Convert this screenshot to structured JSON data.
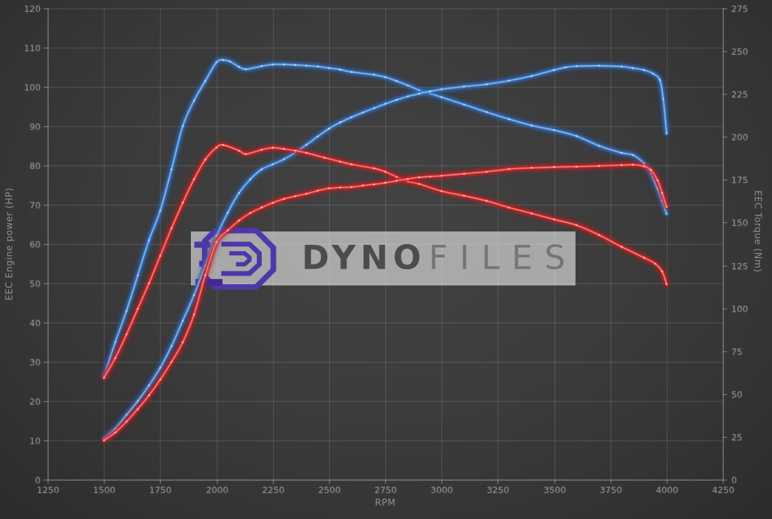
{
  "chart": {
    "ylabel_left": "EEC Engine power (HP)",
    "ylabel_right": "EEC Torque (Nm)",
    "xlabel": "RPM"
  },
  "watermark": {
    "brand_bold": "Dyno",
    "brand_light": "Files",
    "logo_color": "#4e37a8",
    "logo_color_dark": "#3f2b91"
  },
  "colors": {
    "background": "#3c3c3c",
    "grid": "rgba(255,255,255,0.16)",
    "spine": "rgba(255,255,255,0.42)",
    "tick_label": "#a0a0a0",
    "blue_halo": "rgba(30,95,190,0.45)",
    "blue_core": "#3d7ec8",
    "blue_bright": "#a6cdf2",
    "red_halo": "rgba(195,18,18,0.45)",
    "red_core": "#d92b2b",
    "red_bright": "#ff9d9d"
  },
  "chart_data": {
    "type": "line",
    "title": "",
    "xlabel": "RPM",
    "x_axis": {
      "min": 1250,
      "max": 4250,
      "ticks": [
        1250,
        1500,
        1750,
        2000,
        2250,
        2500,
        2750,
        3000,
        3250,
        3500,
        3750,
        4000,
        4250
      ]
    },
    "y_left": {
      "label": "EEC Engine power (HP)",
      "min": 0,
      "max": 120,
      "ticks": [
        0,
        10,
        20,
        30,
        40,
        50,
        60,
        70,
        80,
        90,
        100,
        110,
        120
      ]
    },
    "y_right": {
      "label": "EEC Torque (Nm)",
      "min": 0,
      "max": 275,
      "ticks": [
        0,
        25,
        50,
        75,
        100,
        125,
        150,
        175,
        200,
        225,
        250,
        275
      ]
    },
    "grid": true,
    "legend": "none",
    "series": [
      {
        "name": "torque-run-blue",
        "axis": "right",
        "color": "blue",
        "unit": "Nm",
        "points": [
          [
            1500,
            60.3
          ],
          [
            1550,
            80.2
          ],
          [
            1600,
            98.5
          ],
          [
            1650,
            119.2
          ],
          [
            1700,
            139.8
          ],
          [
            1750,
            157.0
          ],
          [
            1800,
            181.0
          ],
          [
            1850,
            206.3
          ],
          [
            1900,
            221.2
          ],
          [
            1950,
            232.6
          ],
          [
            2000,
            243.6
          ],
          [
            2030,
            244.9
          ],
          [
            2060,
            244.0
          ],
          [
            2100,
            240.9
          ],
          [
            2130,
            239.5
          ],
          [
            2200,
            241.3
          ],
          [
            2250,
            242.3
          ],
          [
            2300,
            242.3
          ],
          [
            2350,
            242.0
          ],
          [
            2400,
            241.6
          ],
          [
            2450,
            241.1
          ],
          [
            2500,
            240.2
          ],
          [
            2550,
            239.3
          ],
          [
            2600,
            237.9
          ],
          [
            2700,
            236.3
          ],
          [
            2750,
            234.9
          ],
          [
            2800,
            232.6
          ],
          [
            2850,
            230.1
          ],
          [
            2900,
            227.3
          ],
          [
            2950,
            225.3
          ],
          [
            3000,
            223.2
          ],
          [
            3100,
            218.9
          ],
          [
            3200,
            214.5
          ],
          [
            3300,
            210.4
          ],
          [
            3400,
            206.7
          ],
          [
            3500,
            204.0
          ],
          [
            3600,
            200.5
          ],
          [
            3700,
            194.8
          ],
          [
            3800,
            190.7
          ],
          [
            3850,
            189.5
          ],
          [
            3900,
            184.5
          ],
          [
            3930,
            178.8
          ],
          [
            3960,
            169.6
          ],
          [
            3980,
            162.7
          ],
          [
            4000,
            155.1
          ]
        ]
      },
      {
        "name": "power-run-blue",
        "axis": "left",
        "color": "blue",
        "unit": "HP",
        "points": [
          [
            1500,
            10.5
          ],
          [
            1550,
            13.0
          ],
          [
            1600,
            16.5
          ],
          [
            1650,
            20.0
          ],
          [
            1700,
            24.0
          ],
          [
            1750,
            28.5
          ],
          [
            1800,
            34.0
          ],
          [
            1850,
            40.5
          ],
          [
            1900,
            47.0
          ],
          [
            1950,
            54.5
          ],
          [
            2000,
            62.0
          ],
          [
            2050,
            68.0
          ],
          [
            2100,
            73.0
          ],
          [
            2150,
            76.5
          ],
          [
            2200,
            79.0
          ],
          [
            2250,
            80.3
          ],
          [
            2300,
            81.6
          ],
          [
            2350,
            83.3
          ],
          [
            2400,
            85.3
          ],
          [
            2450,
            87.4
          ],
          [
            2500,
            89.4
          ],
          [
            2550,
            91.0
          ],
          [
            2600,
            92.3
          ],
          [
            2650,
            93.5
          ],
          [
            2700,
            94.6
          ],
          [
            2750,
            95.7
          ],
          [
            2800,
            96.7
          ],
          [
            2850,
            97.6
          ],
          [
            2900,
            98.3
          ],
          [
            2950,
            98.9
          ],
          [
            3000,
            99.4
          ],
          [
            3100,
            100.1
          ],
          [
            3200,
            100.7
          ],
          [
            3300,
            101.6
          ],
          [
            3400,
            102.8
          ],
          [
            3500,
            104.3
          ],
          [
            3550,
            105.0
          ],
          [
            3600,
            105.3
          ],
          [
            3700,
            105.4
          ],
          [
            3800,
            105.2
          ],
          [
            3850,
            104.8
          ],
          [
            3900,
            104.3
          ],
          [
            3940,
            103.4
          ],
          [
            3970,
            101.8
          ],
          [
            3985,
            97.0
          ],
          [
            4000,
            88.2
          ]
        ]
      },
      {
        "name": "torque-run-red",
        "axis": "right",
        "color": "red",
        "unit": "Nm",
        "points": [
          [
            1500,
            59.4
          ],
          [
            1550,
            71.0
          ],
          [
            1600,
            84.8
          ],
          [
            1650,
            99.7
          ],
          [
            1700,
            114.6
          ],
          [
            1750,
            130.6
          ],
          [
            1800,
            146.7
          ],
          [
            1850,
            161.6
          ],
          [
            1900,
            175.3
          ],
          [
            1950,
            186.8
          ],
          [
            2000,
            193.9
          ],
          [
            2030,
            195.3
          ],
          [
            2100,
            192.0
          ],
          [
            2130,
            190.0
          ],
          [
            2200,
            192.5
          ],
          [
            2250,
            193.7
          ],
          [
            2300,
            193.0
          ],
          [
            2350,
            192.0
          ],
          [
            2400,
            190.7
          ],
          [
            2480,
            187.9
          ],
          [
            2550,
            185.6
          ],
          [
            2600,
            184.0
          ],
          [
            2700,
            181.7
          ],
          [
            2750,
            179.7
          ],
          [
            2800,
            176.7
          ],
          [
            2850,
            174.0
          ],
          [
            2900,
            172.6
          ],
          [
            3000,
            168.4
          ],
          [
            3100,
            165.7
          ],
          [
            3200,
            162.7
          ],
          [
            3300,
            158.8
          ],
          [
            3400,
            155.4
          ],
          [
            3500,
            151.9
          ],
          [
            3600,
            148.5
          ],
          [
            3700,
            142.8
          ],
          [
            3800,
            135.9
          ],
          [
            3900,
            129.5
          ],
          [
            3950,
            126.0
          ],
          [
            3980,
            121.5
          ],
          [
            4000,
            114.1
          ]
        ]
      },
      {
        "name": "power-run-red",
        "axis": "left",
        "color": "red",
        "unit": "HP",
        "points": [
          [
            1500,
            10.0
          ],
          [
            1550,
            12.0
          ],
          [
            1600,
            14.8
          ],
          [
            1650,
            18.0
          ],
          [
            1700,
            21.5
          ],
          [
            1750,
            25.5
          ],
          [
            1800,
            30.0
          ],
          [
            1850,
            35.0
          ],
          [
            1900,
            42.0
          ],
          [
            1950,
            52.0
          ],
          [
            2000,
            60.5
          ],
          [
            2050,
            63.5
          ],
          [
            2100,
            66.0
          ],
          [
            2150,
            67.9
          ],
          [
            2200,
            69.3
          ],
          [
            2250,
            70.5
          ],
          [
            2300,
            71.5
          ],
          [
            2350,
            72.2
          ],
          [
            2400,
            72.8
          ],
          [
            2450,
            73.6
          ],
          [
            2500,
            74.2
          ],
          [
            2550,
            74.4
          ],
          [
            2600,
            74.5
          ],
          [
            2650,
            74.9
          ],
          [
            2700,
            75.2
          ],
          [
            2750,
            75.6
          ],
          [
            2800,
            76.1
          ],
          [
            2850,
            76.6
          ],
          [
            2900,
            77.0
          ],
          [
            2950,
            77.2
          ],
          [
            3000,
            77.4
          ],
          [
            3100,
            77.9
          ],
          [
            3200,
            78.4
          ],
          [
            3300,
            79.1
          ],
          [
            3400,
            79.4
          ],
          [
            3500,
            79.6
          ],
          [
            3600,
            79.7
          ],
          [
            3700,
            79.9
          ],
          [
            3800,
            80.1
          ],
          [
            3850,
            80.2
          ],
          [
            3900,
            79.8
          ],
          [
            3930,
            78.9
          ],
          [
            3960,
            76.2
          ],
          [
            3980,
            73.0
          ],
          [
            4000,
            69.5
          ]
        ]
      }
    ]
  }
}
